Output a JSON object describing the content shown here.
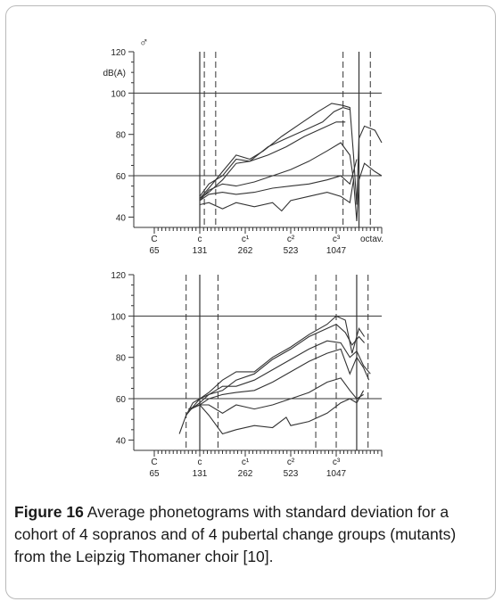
{
  "figure": {
    "label": "Figure 16",
    "caption": " Average phonetograms with standard deviation for a cohort of 4 sopranos and of 4 pubertal change groups (mutants) from the Leipzig Thomaner choir [10]."
  },
  "chart_data": [
    {
      "type": "line",
      "title": "",
      "symbol": "♂",
      "ylabel": "dB(A)",
      "ylim": [
        35,
        120
      ],
      "yticks": [
        40,
        60,
        80,
        100,
        120
      ],
      "hlines": [
        60,
        100
      ],
      "x_ticks": [
        {
          "note": "C",
          "freq": "65"
        },
        {
          "note": "c",
          "freq": "131"
        },
        {
          "note": "c¹",
          "freq": "262"
        },
        {
          "note": "c²",
          "freq": "523"
        },
        {
          "note": "c³",
          "freq": "1047"
        }
      ],
      "x_extra_label": "octav.",
      "xlim": [
        0,
        5.0
      ],
      "vlines_solid": [
        1.0,
        4.5
      ],
      "vlines_dashed": [
        1.1,
        1.35,
        4.15,
        4.75
      ],
      "series": [
        {
          "points": [
            [
              1.0,
              50
            ],
            [
              1.2,
              56
            ],
            [
              1.5,
              60
            ],
            [
              1.8,
              68
            ],
            [
              2.1,
              67
            ],
            [
              2.5,
              74
            ],
            [
              2.9,
              78
            ],
            [
              3.3,
              82
            ],
            [
              3.7,
              86
            ],
            [
              3.95,
              91
            ],
            [
              4.15,
              93
            ],
            [
              4.3,
              92
            ]
          ]
        },
        {
          "points": [
            [
              1.0,
              49
            ],
            [
              1.2,
              54
            ],
            [
              1.5,
              62
            ],
            [
              1.8,
              70
            ],
            [
              2.1,
              68
            ],
            [
              2.4,
              72
            ],
            [
              2.8,
              79
            ],
            [
              3.2,
              85
            ],
            [
              3.6,
              91
            ],
            [
              3.9,
              95
            ],
            [
              4.15,
              94
            ],
            [
              4.3,
              93
            ],
            [
              4.38,
              70
            ],
            [
              4.45,
              46
            ],
            [
              4.5,
              78
            ],
            [
              4.62,
              84
            ],
            [
              4.85,
              82
            ],
            [
              5.0,
              76
            ]
          ]
        },
        {
          "points": [
            [
              1.0,
              49
            ],
            [
              1.2,
              52
            ],
            [
              1.5,
              58
            ],
            [
              1.8,
              66
            ],
            [
              2.1,
              67
            ],
            [
              2.5,
              70
            ],
            [
              2.9,
              74
            ],
            [
              3.3,
              79
            ],
            [
              3.7,
              83
            ],
            [
              4.0,
              86
            ],
            [
              4.2,
              86
            ]
          ]
        },
        {
          "points": [
            [
              1.0,
              48
            ],
            [
              1.2,
              53
            ],
            [
              1.5,
              56
            ],
            [
              1.8,
              55
            ],
            [
              2.2,
              57
            ],
            [
              2.6,
              60
            ],
            [
              3.0,
              63
            ],
            [
              3.4,
              67
            ],
            [
              3.8,
              72
            ],
            [
              4.1,
              76
            ],
            [
              4.3,
              70
            ],
            [
              4.38,
              58
            ],
            [
              4.45,
              38
            ],
            [
              4.5,
              58
            ],
            [
              4.62,
              66
            ],
            [
              4.85,
              62
            ],
            [
              5.0,
              60
            ]
          ]
        },
        {
          "points": [
            [
              1.0,
              48
            ],
            [
              1.2,
              51
            ],
            [
              1.5,
              52
            ],
            [
              1.8,
              51
            ],
            [
              2.2,
              52
            ],
            [
              2.6,
              54
            ],
            [
              3.0,
              55
            ],
            [
              3.4,
              56
            ],
            [
              3.8,
              58
            ],
            [
              4.1,
              60
            ],
            [
              4.3,
              56
            ],
            [
              4.38,
              62
            ],
            [
              4.45,
              68
            ]
          ]
        },
        {
          "points": [
            [
              1.0,
              46
            ],
            [
              1.2,
              47
            ],
            [
              1.5,
              44
            ],
            [
              1.8,
              47
            ],
            [
              2.2,
              45
            ],
            [
              2.6,
              47
            ],
            [
              2.8,
              43
            ],
            [
              3.0,
              48
            ],
            [
              3.4,
              50
            ],
            [
              3.8,
              52
            ],
            [
              4.1,
              50
            ],
            [
              4.3,
              47
            ],
            [
              4.38,
              58
            ]
          ]
        }
      ]
    },
    {
      "type": "line",
      "title": "",
      "ylim": [
        35,
        120
      ],
      "yticks": [
        40,
        60,
        80,
        100,
        120
      ],
      "hlines": [
        60,
        100
      ],
      "x_ticks": [
        {
          "note": "C",
          "freq": "65"
        },
        {
          "note": "c",
          "freq": "131"
        },
        {
          "note": "c¹",
          "freq": "262"
        },
        {
          "note": "c²",
          "freq": "523"
        },
        {
          "note": "c³",
          "freq": "1047"
        }
      ],
      "xlim": [
        0,
        5.0
      ],
      "vlines_solid": [
        1.0,
        4.45
      ],
      "vlines_dashed": [
        0.7,
        1.4,
        3.55,
        4.0,
        4.7
      ],
      "series": [
        {
          "points": [
            [
              0.55,
              43
            ],
            [
              0.7,
              52
            ],
            [
              0.85,
              58
            ],
            [
              1.0,
              60
            ],
            [
              1.2,
              62
            ],
            [
              1.5,
              64
            ],
            [
              1.8,
              69
            ],
            [
              2.2,
              72
            ],
            [
              2.6,
              79
            ],
            [
              3.0,
              84
            ],
            [
              3.4,
              90
            ],
            [
              3.8,
              94
            ],
            [
              4.0,
              96
            ],
            [
              4.2,
              92
            ],
            [
              4.35,
              86
            ],
            [
              4.5,
              90
            ],
            [
              4.62,
              87
            ]
          ]
        },
        {
          "points": [
            [
              0.7,
              52
            ],
            [
              0.85,
              56
            ],
            [
              1.0,
              60
            ],
            [
              1.2,
              63
            ],
            [
              1.5,
              69
            ],
            [
              1.8,
              73
            ],
            [
              2.2,
              73
            ],
            [
              2.6,
              80
            ],
            [
              3.0,
              85
            ],
            [
              3.4,
              91
            ],
            [
              3.8,
              96
            ],
            [
              4.0,
              100
            ],
            [
              4.2,
              98
            ],
            [
              4.35,
              82
            ],
            [
              4.5,
              94
            ],
            [
              4.62,
              90
            ]
          ]
        },
        {
          "points": [
            [
              0.75,
              54
            ],
            [
              1.0,
              58
            ],
            [
              1.2,
              62
            ],
            [
              1.5,
              66
            ],
            [
              1.8,
              66
            ],
            [
              2.2,
              69
            ],
            [
              2.6,
              74
            ],
            [
              3.0,
              79
            ],
            [
              3.4,
              84
            ],
            [
              3.8,
              88
            ],
            [
              4.1,
              87
            ],
            [
              4.3,
              80
            ],
            [
              4.45,
              83
            ],
            [
              4.6,
              76
            ],
            [
              4.75,
              72
            ]
          ]
        },
        {
          "points": [
            [
              0.75,
              55
            ],
            [
              1.0,
              57
            ],
            [
              1.2,
              60
            ],
            [
              1.5,
              62
            ],
            [
              1.8,
              63
            ],
            [
              2.2,
              64
            ],
            [
              2.6,
              68
            ],
            [
              3.0,
              73
            ],
            [
              3.4,
              78
            ],
            [
              3.8,
              82
            ],
            [
              4.1,
              84
            ],
            [
              4.3,
              72
            ],
            [
              4.45,
              80
            ],
            [
              4.6,
              75
            ],
            [
              4.72,
              69
            ]
          ]
        },
        {
          "points": [
            [
              0.8,
              55
            ],
            [
              1.0,
              57
            ],
            [
              1.2,
              57
            ],
            [
              1.5,
              53
            ],
            [
              1.8,
              57
            ],
            [
              2.2,
              55
            ],
            [
              2.6,
              57
            ],
            [
              3.0,
              60
            ],
            [
              3.4,
              63
            ],
            [
              3.8,
              68
            ],
            [
              4.1,
              70
            ],
            [
              4.3,
              64
            ],
            [
              4.45,
              60
            ],
            [
              4.6,
              62
            ]
          ]
        },
        {
          "points": [
            [
              0.8,
              55
            ],
            [
              1.0,
              57
            ],
            [
              1.2,
              52
            ],
            [
              1.5,
              43
            ],
            [
              1.8,
              45
            ],
            [
              2.2,
              47
            ],
            [
              2.6,
              46
            ],
            [
              2.9,
              51
            ],
            [
              3.0,
              47
            ],
            [
              3.4,
              49
            ],
            [
              3.8,
              53
            ],
            [
              4.1,
              58
            ],
            [
              4.3,
              60
            ],
            [
              4.45,
              58
            ],
            [
              4.6,
              64
            ]
          ]
        }
      ]
    }
  ]
}
